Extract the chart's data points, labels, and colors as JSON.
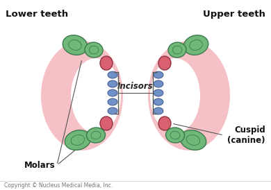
{
  "white_bg": "#ffffff",
  "gum_pink": "#f2a0a8",
  "molar_green": "#70b87a",
  "molar_outline": "#3a7a4a",
  "cuspid_pink": "#d96070",
  "incisor_blue": "#7090c8",
  "incisor_outline": "#405888",
  "title_lower": "Lower teeth",
  "title_upper": "Upper teeth",
  "label_incisors": "Incisors",
  "label_molars": "Molars",
  "label_cuspid": "Cuspid\n(canine)",
  "copyright": "Copyright © Nucleus Medical Media, Inc.",
  "font_size_title": 9.5,
  "font_size_label": 8.5,
  "font_size_copy": 5.5
}
